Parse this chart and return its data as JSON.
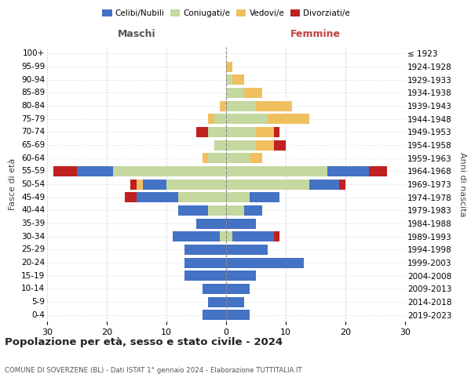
{
  "age_groups": [
    "0-4",
    "5-9",
    "10-14",
    "15-19",
    "20-24",
    "25-29",
    "30-34",
    "35-39",
    "40-44",
    "45-49",
    "50-54",
    "55-59",
    "60-64",
    "65-69",
    "70-74",
    "75-79",
    "80-84",
    "85-89",
    "90-94",
    "95-99",
    "100+"
  ],
  "birth_years": [
    "2019-2023",
    "2014-2018",
    "2009-2013",
    "2004-2008",
    "1999-2003",
    "1994-1998",
    "1989-1993",
    "1984-1988",
    "1979-1983",
    "1974-1978",
    "1969-1973",
    "1964-1968",
    "1959-1963",
    "1954-1958",
    "1949-1953",
    "1944-1948",
    "1939-1943",
    "1934-1938",
    "1929-1933",
    "1924-1928",
    "≤ 1923"
  ],
  "maschi": {
    "celibi": [
      4,
      3,
      4,
      7,
      7,
      7,
      8,
      5,
      5,
      7,
      4,
      6,
      0,
      0,
      0,
      0,
      0,
      0,
      0,
      0,
      0
    ],
    "coniugati": [
      0,
      0,
      0,
      0,
      0,
      0,
      1,
      0,
      3,
      8,
      10,
      19,
      3,
      2,
      3,
      2,
      0,
      0,
      0,
      0,
      0
    ],
    "vedovi": [
      0,
      0,
      0,
      0,
      0,
      0,
      0,
      0,
      0,
      0,
      1,
      0,
      1,
      0,
      0,
      1,
      1,
      0,
      0,
      0,
      0
    ],
    "divorziati": [
      0,
      0,
      0,
      0,
      0,
      0,
      0,
      0,
      0,
      2,
      1,
      4,
      0,
      0,
      2,
      0,
      0,
      0,
      0,
      0,
      0
    ]
  },
  "femmine": {
    "nubili": [
      4,
      3,
      4,
      5,
      13,
      7,
      7,
      5,
      3,
      5,
      5,
      7,
      0,
      0,
      0,
      0,
      0,
      0,
      0,
      0,
      0
    ],
    "coniugate": [
      0,
      0,
      0,
      0,
      0,
      0,
      1,
      0,
      3,
      4,
      14,
      17,
      4,
      5,
      5,
      7,
      5,
      3,
      1,
      0,
      0
    ],
    "vedove": [
      0,
      0,
      0,
      0,
      0,
      0,
      0,
      0,
      0,
      0,
      0,
      0,
      2,
      3,
      3,
      7,
      6,
      3,
      2,
      1,
      0
    ],
    "divorziate": [
      0,
      0,
      0,
      0,
      0,
      0,
      1,
      0,
      0,
      0,
      1,
      3,
      0,
      2,
      1,
      0,
      0,
      0,
      0,
      0,
      0
    ]
  },
  "color_celibi": "#4472c4",
  "color_coniugati": "#c5d8a0",
  "color_vedovi": "#f0c060",
  "color_divorziati": "#c02020",
  "xlim": 30,
  "title": "Popolazione per età, sesso e stato civile - 2024",
  "subtitle": "COMUNE DI SOVERZENE (BL) - Dati ISTAT 1° gennaio 2024 - Elaborazione TUTTITALIA.IT",
  "ylabel_left": "Fasce di età",
  "ylabel_right": "Anni di nascita",
  "xlabel_left": "Maschi",
  "xlabel_right": "Femmine"
}
